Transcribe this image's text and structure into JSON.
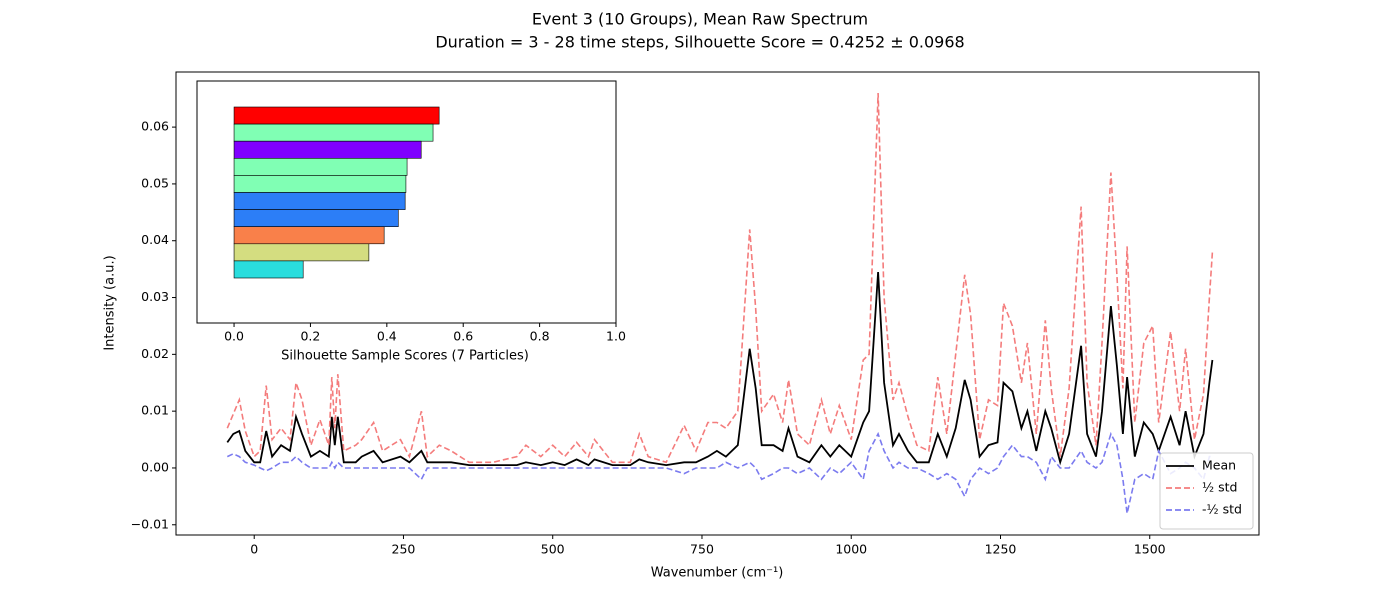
{
  "chart_data": [
    {
      "type": "line",
      "title": "Event 3 (10 Groups), Mean Raw Spectrum",
      "subtitle": "Duration = 3 - 28 time steps, Silhouette Score = 0.4252 ± 0.0968",
      "x_label": "Wavenumber (cm⁻¹)",
      "y_label": "Intensity (a.u.)",
      "x": [
        -45,
        -35,
        -25,
        -15,
        0,
        10,
        20,
        30,
        45,
        60,
        70,
        80,
        95,
        110,
        125,
        130,
        135,
        140,
        150,
        170,
        180,
        200,
        215,
        245,
        260,
        280,
        290,
        310,
        330,
        360,
        400,
        440,
        455,
        480,
        500,
        520,
        540,
        560,
        570,
        600,
        630,
        645,
        660,
        690,
        720,
        740,
        760,
        775,
        790,
        810,
        830,
        840,
        850,
        870,
        885,
        895,
        910,
        930,
        950,
        965,
        980,
        1000,
        1020,
        1030,
        1045,
        1055,
        1070,
        1080,
        1095,
        1110,
        1130,
        1145,
        1160,
        1175,
        1190,
        1200,
        1215,
        1230,
        1245,
        1255,
        1270,
        1285,
        1295,
        1310,
        1325,
        1335,
        1350,
        1365,
        1385,
        1395,
        1410,
        1420,
        1435,
        1445,
        1455,
        1462,
        1475,
        1490,
        1505,
        1515,
        1535,
        1550,
        1560,
        1575,
        1590,
        1600,
        1605
      ],
      "series": [
        {
          "name": "Mean",
          "color": "#000000",
          "dash": false,
          "values": [
            0.0045,
            0.006,
            0.0065,
            0.003,
            0.001,
            0.001,
            0.0065,
            0.002,
            0.004,
            0.003,
            0.009,
            0.006,
            0.002,
            0.003,
            0.002,
            0.009,
            0.004,
            0.009,
            0.001,
            0.001,
            0.002,
            0.003,
            0.001,
            0.002,
            0.001,
            0.003,
            0.001,
            0.001,
            0.001,
            0.0005,
            0.0005,
            0.0005,
            0.001,
            0.0005,
            0.001,
            0.0005,
            0.0015,
            0.0005,
            0.0015,
            0.0005,
            0.0005,
            0.0015,
            0.001,
            0.0005,
            0.001,
            0.001,
            0.002,
            0.003,
            0.002,
            0.004,
            0.021,
            0.014,
            0.004,
            0.004,
            0.003,
            0.007,
            0.002,
            0.001,
            0.004,
            0.002,
            0.004,
            0.002,
            0.008,
            0.01,
            0.0345,
            0.015,
            0.004,
            0.006,
            0.003,
            0.001,
            0.001,
            0.006,
            0.002,
            0.007,
            0.0155,
            0.012,
            0.002,
            0.004,
            0.0045,
            0.015,
            0.0135,
            0.007,
            0.01,
            0.003,
            0.01,
            0.007,
            0.001,
            0.006,
            0.0215,
            0.006,
            0.002,
            0.01,
            0.0285,
            0.018,
            0.006,
            0.016,
            0.002,
            0.008,
            0.006,
            0.003,
            0.009,
            0.004,
            0.01,
            0.002,
            0.006,
            0.015,
            0.019
          ]
        },
        {
          "name": "½ std",
          "color": "#f47c7c",
          "dash": true,
          "values": [
            0.007,
            0.0095,
            0.012,
            0.0065,
            0.002,
            0.003,
            0.0145,
            0.005,
            0.007,
            0.005,
            0.015,
            0.012,
            0.004,
            0.0085,
            0.004,
            0.016,
            0.007,
            0.0165,
            0.003,
            0.004,
            0.005,
            0.008,
            0.003,
            0.005,
            0.002,
            0.01,
            0.002,
            0.004,
            0.003,
            0.001,
            0.001,
            0.002,
            0.004,
            0.002,
            0.004,
            0.002,
            0.0045,
            0.002,
            0.005,
            0.001,
            0.001,
            0.006,
            0.002,
            0.001,
            0.0075,
            0.003,
            0.008,
            0.008,
            0.007,
            0.01,
            0.042,
            0.028,
            0.01,
            0.013,
            0.008,
            0.0155,
            0.006,
            0.004,
            0.012,
            0.006,
            0.011,
            0.005,
            0.019,
            0.02,
            0.066,
            0.03,
            0.012,
            0.015,
            0.009,
            0.004,
            0.003,
            0.016,
            0.006,
            0.02,
            0.034,
            0.027,
            0.005,
            0.012,
            0.011,
            0.029,
            0.025,
            0.015,
            0.022,
            0.006,
            0.026,
            0.014,
            0.002,
            0.014,
            0.046,
            0.015,
            0.004,
            0.022,
            0.052,
            0.034,
            0.014,
            0.039,
            0.008,
            0.022,
            0.025,
            0.008,
            0.024,
            0.01,
            0.021,
            0.005,
            0.013,
            0.03,
            0.038
          ]
        },
        {
          "name": "-½ std",
          "color": "#7b7bef",
          "dash": true,
          "values": [
            0.002,
            0.0025,
            0.002,
            0.001,
            0.0005,
            0.0,
            -0.0005,
            0.0,
            0.001,
            0.001,
            0.002,
            0.001,
            0.0,
            0.0,
            0.0,
            0.001,
            0.0,
            0.001,
            0.0,
            0.0,
            0.0,
            0.0,
            0.0,
            0.0,
            0.0,
            -0.002,
            0.0,
            0.0,
            0.0,
            0.0,
            0.0,
            0.0,
            0.0,
            0.0,
            0.0,
            0.0,
            0.0,
            0.0,
            0.0,
            0.0,
            0.0,
            0.0,
            0.0,
            0.0,
            -0.001,
            0.0,
            0.0,
            0.0,
            0.001,
            0.0,
            0.001,
            0.0,
            -0.002,
            -0.001,
            0.0,
            0.0,
            -0.001,
            0.0,
            -0.002,
            0.0,
            -0.001,
            0.001,
            -0.002,
            0.003,
            0.006,
            0.003,
            0.0,
            0.001,
            0.0,
            0.0,
            -0.001,
            -0.002,
            -0.001,
            -0.002,
            -0.005,
            -0.002,
            0.0,
            -0.001,
            0.0,
            0.002,
            0.004,
            0.002,
            0.002,
            0.001,
            -0.002,
            0.002,
            0.0,
            0.0,
            0.003,
            0.001,
            0.0,
            0.001,
            0.006,
            0.004,
            -0.002,
            -0.008,
            -0.002,
            -0.001,
            -0.002,
            0.003,
            -0.001,
            0.0,
            0.001,
            0.0,
            -0.002,
            0.002,
            0.002
          ]
        }
      ],
      "xlim": [
        -131,
        1683
      ],
      "xticks": [
        0,
        250,
        500,
        750,
        1000,
        1250,
        1500
      ],
      "ylim": [
        -0.0118,
        0.0697
      ],
      "yticks": [
        {
          "value": -0.01,
          "label": "−0.01"
        },
        {
          "value": 0,
          "label": "0.00"
        },
        {
          "value": 0.01,
          "label": "0.01"
        },
        {
          "value": 0.02,
          "label": "0.02"
        },
        {
          "value": 0.03,
          "label": "0.03"
        },
        {
          "value": 0.04,
          "label": "0.04"
        },
        {
          "value": 0.05,
          "label": "0.05"
        },
        {
          "value": 0.06,
          "label": "0.06"
        }
      ],
      "legend": "lower right"
    },
    {
      "type": "barh",
      "x_label": "Silhouette Sample Scores (7 Particles)",
      "values": [
        0.537,
        0.521,
        0.49,
        0.453,
        0.45,
        0.448,
        0.43,
        0.393,
        0.353,
        0.181
      ],
      "colors": [
        "#ff0000",
        "#80ffb4",
        "#8000ff",
        "#80ffb4",
        "#80ffb4",
        "#2c7ef7",
        "#2c7ef7",
        "#f9804a",
        "#d4dd80",
        "#2adddd"
      ],
      "xlim": [
        -0.097,
        1.0
      ],
      "xticks": [
        {
          "value": 0,
          "label": "0.0"
        },
        0.2,
        0.4,
        0.6,
        0.8,
        {
          "value": 1,
          "label": "1.0"
        }
      ]
    }
  ]
}
